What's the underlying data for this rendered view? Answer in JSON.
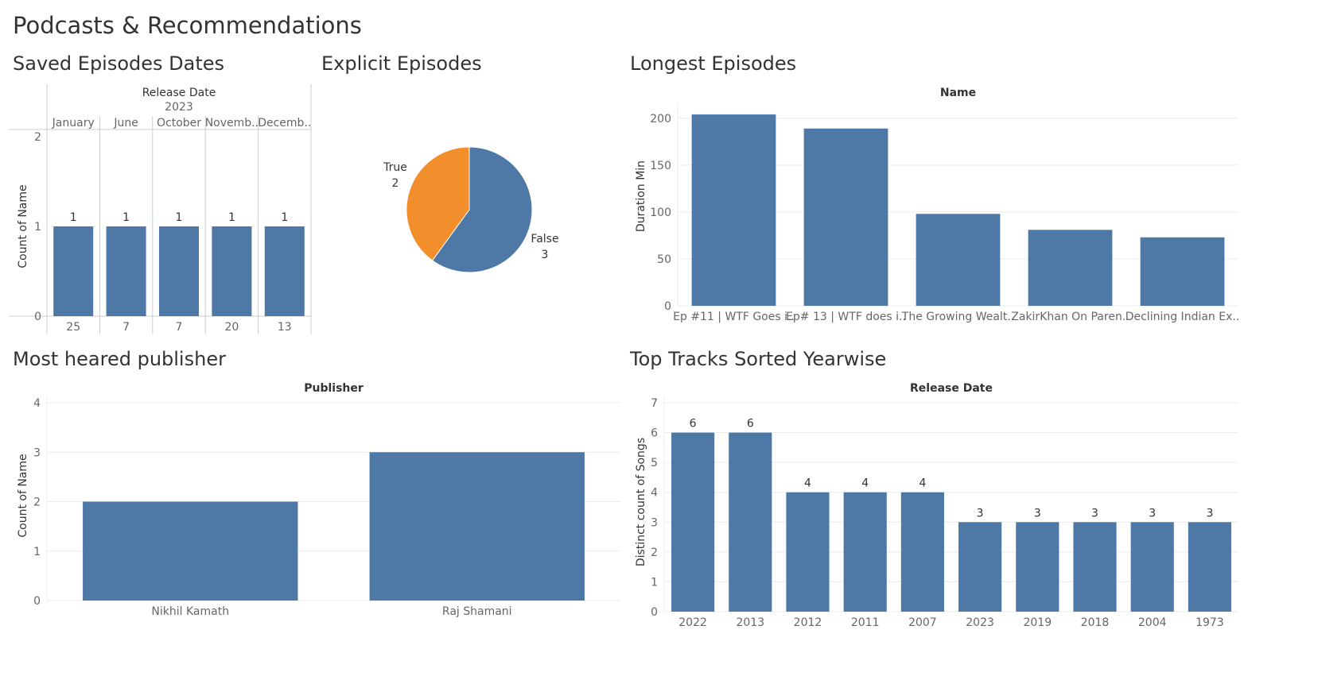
{
  "dashboard": {
    "title": "Podcasts & Recommendations"
  },
  "colors": {
    "bar": "#4e79a7",
    "pie_true": "#f28e2b",
    "pie_false": "#4e79a7"
  },
  "panels": {
    "saved": {
      "title": "Saved Episodes Dates"
    },
    "explicit": {
      "title": "Explicit Episodes"
    },
    "longest": {
      "title": "Longest Episodes"
    },
    "publisher": {
      "title": "Most heared publisher"
    },
    "tracks": {
      "title": "Top Tracks Sorted Yearwise"
    }
  },
  "chart_data": [
    {
      "type": "bar",
      "title": "Saved Episodes Dates",
      "column_header": "Release Date",
      "year": "2023",
      "categories": [
        "January",
        "June",
        "October",
        "Novemb..",
        "Decemb.."
      ],
      "days": [
        "25",
        "7",
        "7",
        "20",
        "13"
      ],
      "values": [
        1,
        1,
        1,
        1,
        1
      ],
      "ylabel": "Count of Name",
      "ylim": [
        0,
        2
      ],
      "yticks": [
        0,
        1,
        2
      ],
      "data_labels": true
    },
    {
      "type": "pie",
      "title": "Explicit Episodes",
      "slices": [
        {
          "label": "True",
          "value": 2,
          "color": "#f28e2b"
        },
        {
          "label": "False",
          "value": 3,
          "color": "#4e79a7"
        }
      ]
    },
    {
      "type": "bar",
      "title": "Longest Episodes",
      "column_header": "Name",
      "categories": [
        "Ep #11 | WTF Goes i..",
        "Ep# 13 | WTF does i..",
        "The Growing Wealt..",
        "ZakirKhan On Paren..",
        "Declining Indian Ex.."
      ],
      "values": [
        204,
        189,
        98,
        81,
        73
      ],
      "ylabel": "Duration Min",
      "ylim": [
        0,
        210
      ],
      "yticks": [
        0,
        50,
        100,
        150,
        200
      ],
      "grid": true
    },
    {
      "type": "bar",
      "title": "Most heared publisher",
      "column_header": "Publisher",
      "categories": [
        "Nikhil Kamath",
        "Raj Shamani"
      ],
      "values": [
        2,
        3
      ],
      "ylabel": "Count of Name",
      "ylim": [
        0,
        4
      ],
      "yticks": [
        0,
        1,
        2,
        3,
        4
      ],
      "grid": true
    },
    {
      "type": "bar",
      "title": "Top Tracks Sorted Yearwise",
      "column_header": "Release Date",
      "categories": [
        "2022",
        "2013",
        "2012",
        "2011",
        "2007",
        "2023",
        "2019",
        "2018",
        "2004",
        "1973"
      ],
      "values": [
        6,
        6,
        4,
        4,
        4,
        3,
        3,
        3,
        3,
        3
      ],
      "ylabel": "Distinct count of Songs",
      "ylim": [
        0,
        7
      ],
      "yticks": [
        0,
        1,
        2,
        3,
        4,
        5,
        6,
        7
      ],
      "grid": true,
      "data_labels": true
    }
  ]
}
